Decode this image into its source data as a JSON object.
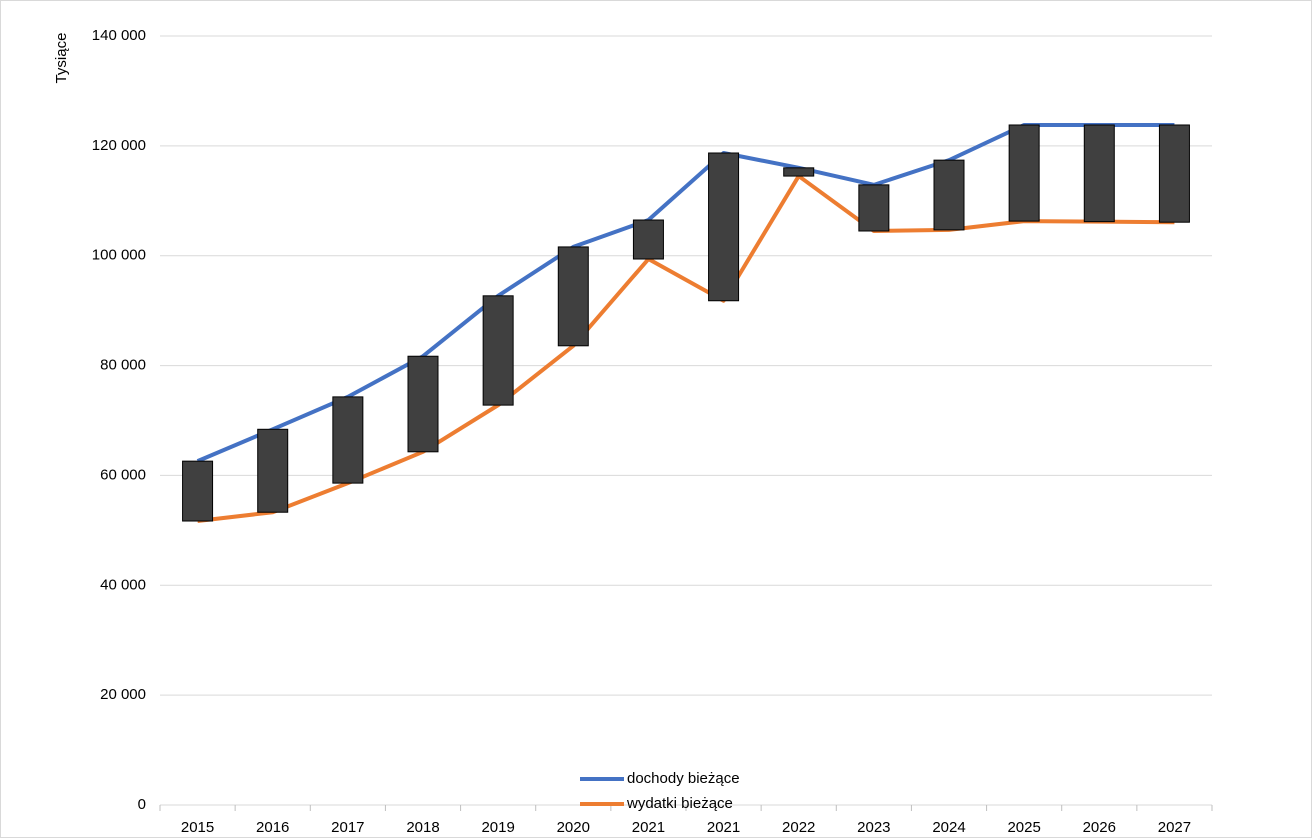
{
  "chart_data": {
    "type": "line",
    "y_label": "Tysiące",
    "categories": [
      "2015",
      "2016",
      "2017",
      "2018",
      "2019",
      "2020",
      "2021",
      "2021",
      "2022",
      "2023",
      "2024",
      "2025",
      "2026",
      "2027"
    ],
    "series": [
      {
        "name": "dochody bieżące",
        "color": "#4472c4",
        "values": [
          62600,
          68400,
          74300,
          81700,
          92700,
          101600,
          106500,
          118700,
          116000,
          112900,
          117400,
          123800,
          123800,
          123800
        ]
      },
      {
        "name": "wydatki bieżące",
        "color": "#ed7d31",
        "values": [
          51700,
          53300,
          58600,
          64300,
          72800,
          83600,
          99400,
          91800,
          114500,
          104500,
          104700,
          106300,
          106200,
          106100
        ]
      }
    ],
    "up_down_bars": true,
    "bar_color": "#404040",
    "ylim": [
      0,
      140000
    ],
    "yticks": [
      0,
      {
        "value": 20000,
        "label": "20 000"
      },
      {
        "value": 40000,
        "label": "40 000"
      },
      {
        "value": 60000,
        "label": "60 000"
      },
      {
        "value": 80000,
        "label": "80 000"
      },
      {
        "value": 100000,
        "label": "100 000"
      },
      {
        "value": 120000,
        "label": "120 000"
      },
      {
        "value": 140000,
        "label": "140 000"
      }
    ],
    "grid": true,
    "legend": "bottom"
  }
}
